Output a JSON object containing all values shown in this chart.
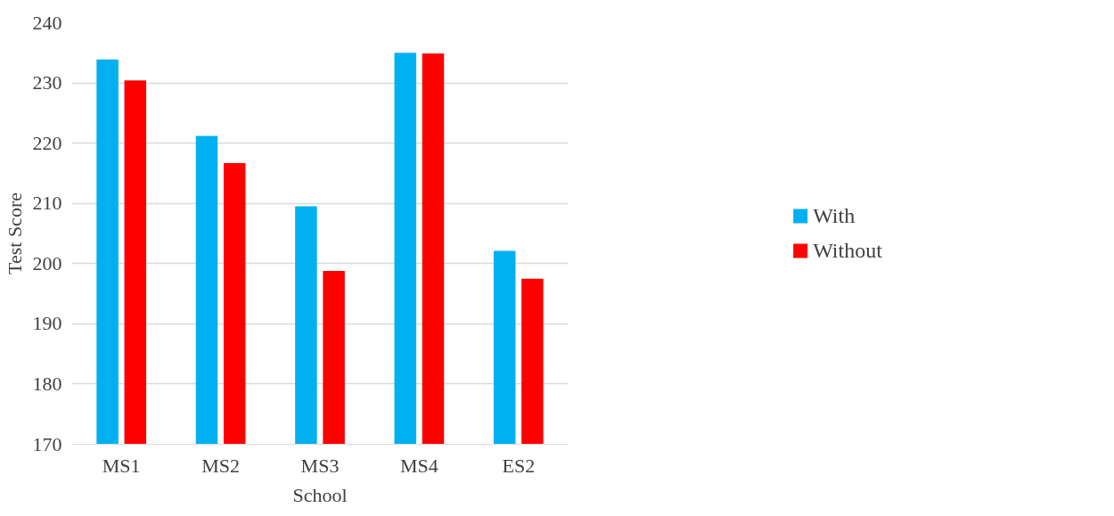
{
  "chart_data": {
    "type": "bar",
    "xlabel": "School",
    "ylabel": "Test Score",
    "categories": [
      "MS1",
      "MS2",
      "MS3",
      "MS4",
      "ES2"
    ],
    "series": [
      {
        "name": "With",
        "color": "#00b0f0",
        "values": [
          233.9,
          221.2,
          209.5,
          235.0,
          202.1
        ]
      },
      {
        "name": "Without",
        "color": "#ff0000",
        "values": [
          230.4,
          216.7,
          198.8,
          234.9,
          197.5
        ]
      }
    ],
    "ylim": [
      170,
      240
    ],
    "yticks": [
      170,
      180,
      190,
      200,
      210,
      220,
      230,
      240
    ],
    "grid": "y",
    "legend": "right"
  }
}
